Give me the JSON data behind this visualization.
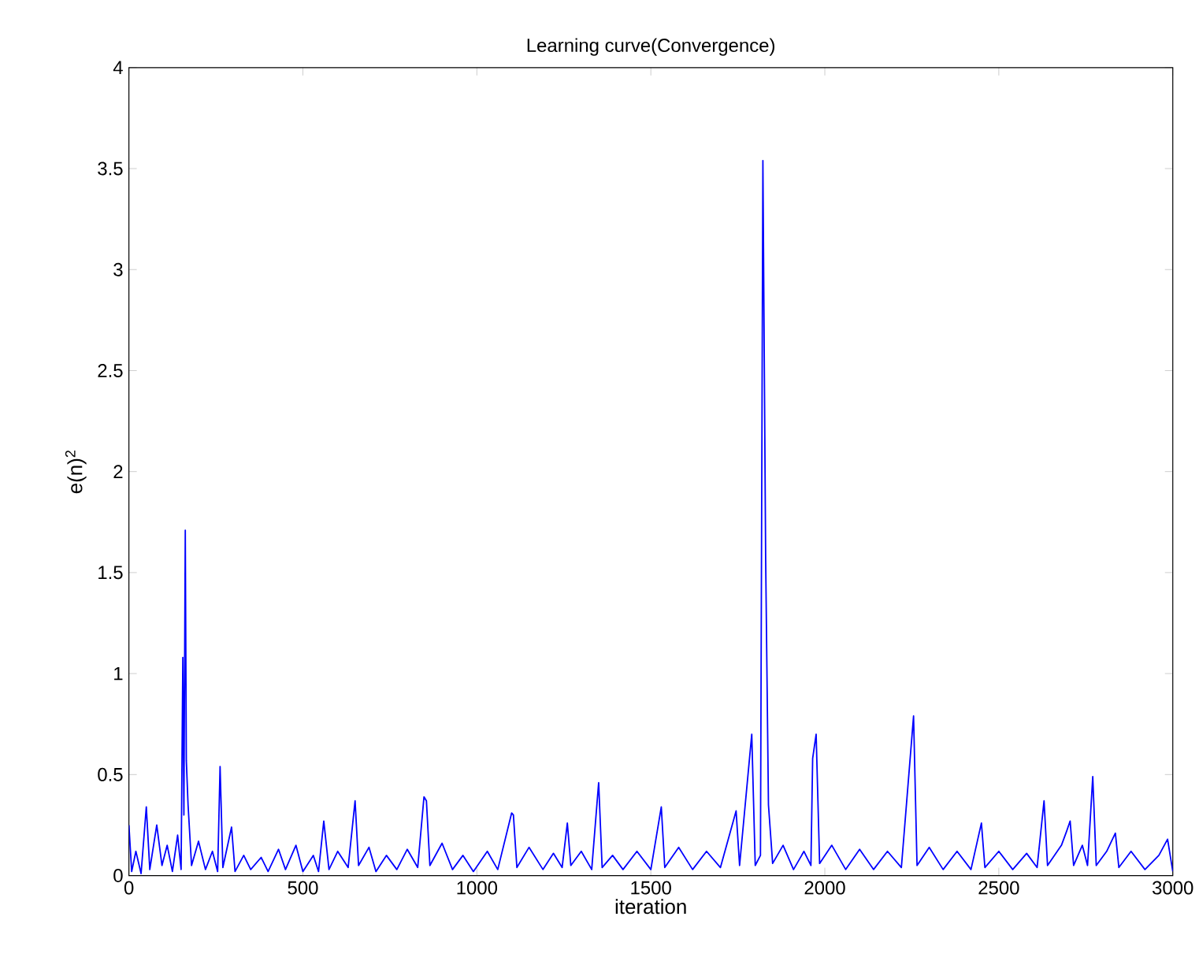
{
  "chart_data": {
    "type": "line",
    "title": "Learning curve(Convergence)",
    "xlabel": "iteration",
    "ylabel": "e(n)$^{2}$",
    "x": [
      0,
      8,
      20,
      35,
      50,
      60,
      80,
      95,
      110,
      125,
      140,
      150,
      155,
      158,
      162,
      165,
      170,
      180,
      200,
      220,
      240,
      255,
      262,
      270,
      295,
      305,
      330,
      350,
      380,
      400,
      430,
      450,
      480,
      500,
      530,
      545,
      560,
      575,
      600,
      630,
      650,
      660,
      690,
      710,
      740,
      770,
      800,
      830,
      848,
      855,
      865,
      900,
      930,
      960,
      990,
      1030,
      1060,
      1100,
      1105,
      1115,
      1150,
      1190,
      1220,
      1245,
      1260,
      1270,
      1300,
      1330,
      1350,
      1360,
      1390,
      1420,
      1460,
      1500,
      1530,
      1540,
      1580,
      1620,
      1660,
      1700,
      1745,
      1755,
      1790,
      1800,
      1815,
      1822,
      1830,
      1838,
      1850,
      1880,
      1910,
      1940,
      1960,
      1965,
      1975,
      1985,
      2020,
      2060,
      2100,
      2140,
      2180,
      2220,
      2255,
      2265,
      2300,
      2340,
      2380,
      2420,
      2450,
      2460,
      2500,
      2540,
      2580,
      2610,
      2630,
      2640,
      2680,
      2695,
      2705,
      2715,
      2740,
      2755,
      2770,
      2780,
      2810,
      2835,
      2845,
      2880,
      2920,
      2960,
      2985,
      3000
    ],
    "series": [
      {
        "color": "#0000ff",
        "values": [
          0.25,
          0.02,
          0.12,
          0.01,
          0.34,
          0.03,
          0.25,
          0.05,
          0.15,
          0.02,
          0.2,
          0.03,
          1.08,
          0.3,
          1.71,
          0.57,
          0.35,
          0.05,
          0.17,
          0.03,
          0.12,
          0.02,
          0.54,
          0.04,
          0.24,
          0.02,
          0.1,
          0.03,
          0.09,
          0.02,
          0.13,
          0.03,
          0.15,
          0.02,
          0.1,
          0.02,
          0.27,
          0.03,
          0.12,
          0.04,
          0.37,
          0.05,
          0.14,
          0.02,
          0.1,
          0.03,
          0.13,
          0.04,
          0.39,
          0.37,
          0.05,
          0.16,
          0.03,
          0.1,
          0.02,
          0.12,
          0.03,
          0.31,
          0.3,
          0.04,
          0.14,
          0.03,
          0.11,
          0.04,
          0.26,
          0.05,
          0.12,
          0.03,
          0.46,
          0.04,
          0.1,
          0.03,
          0.12,
          0.03,
          0.34,
          0.04,
          0.14,
          0.03,
          0.12,
          0.04,
          0.32,
          0.05,
          0.7,
          0.05,
          0.1,
          3.54,
          1.56,
          0.35,
          0.06,
          0.15,
          0.03,
          0.12,
          0.05,
          0.58,
          0.7,
          0.06,
          0.15,
          0.03,
          0.13,
          0.03,
          0.12,
          0.04,
          0.79,
          0.05,
          0.14,
          0.03,
          0.12,
          0.03,
          0.26,
          0.04,
          0.12,
          0.03,
          0.11,
          0.04,
          0.37,
          0.05,
          0.15,
          0.22,
          0.27,
          0.05,
          0.15,
          0.05,
          0.49,
          0.05,
          0.12,
          0.21,
          0.04,
          0.12,
          0.03,
          0.1,
          0.18,
          0.02
        ]
      }
    ],
    "xlim": [
      0,
      3000
    ],
    "xticks": [
      0,
      500,
      1000,
      1500,
      2000,
      2500,
      3000
    ],
    "ylim": [
      0,
      4
    ],
    "yticks": [
      0,
      0.5,
      1,
      1.5,
      2,
      2.5,
      3,
      3.5,
      4
    ],
    "grid": false,
    "marker": "none",
    "line_style": "solid"
  }
}
